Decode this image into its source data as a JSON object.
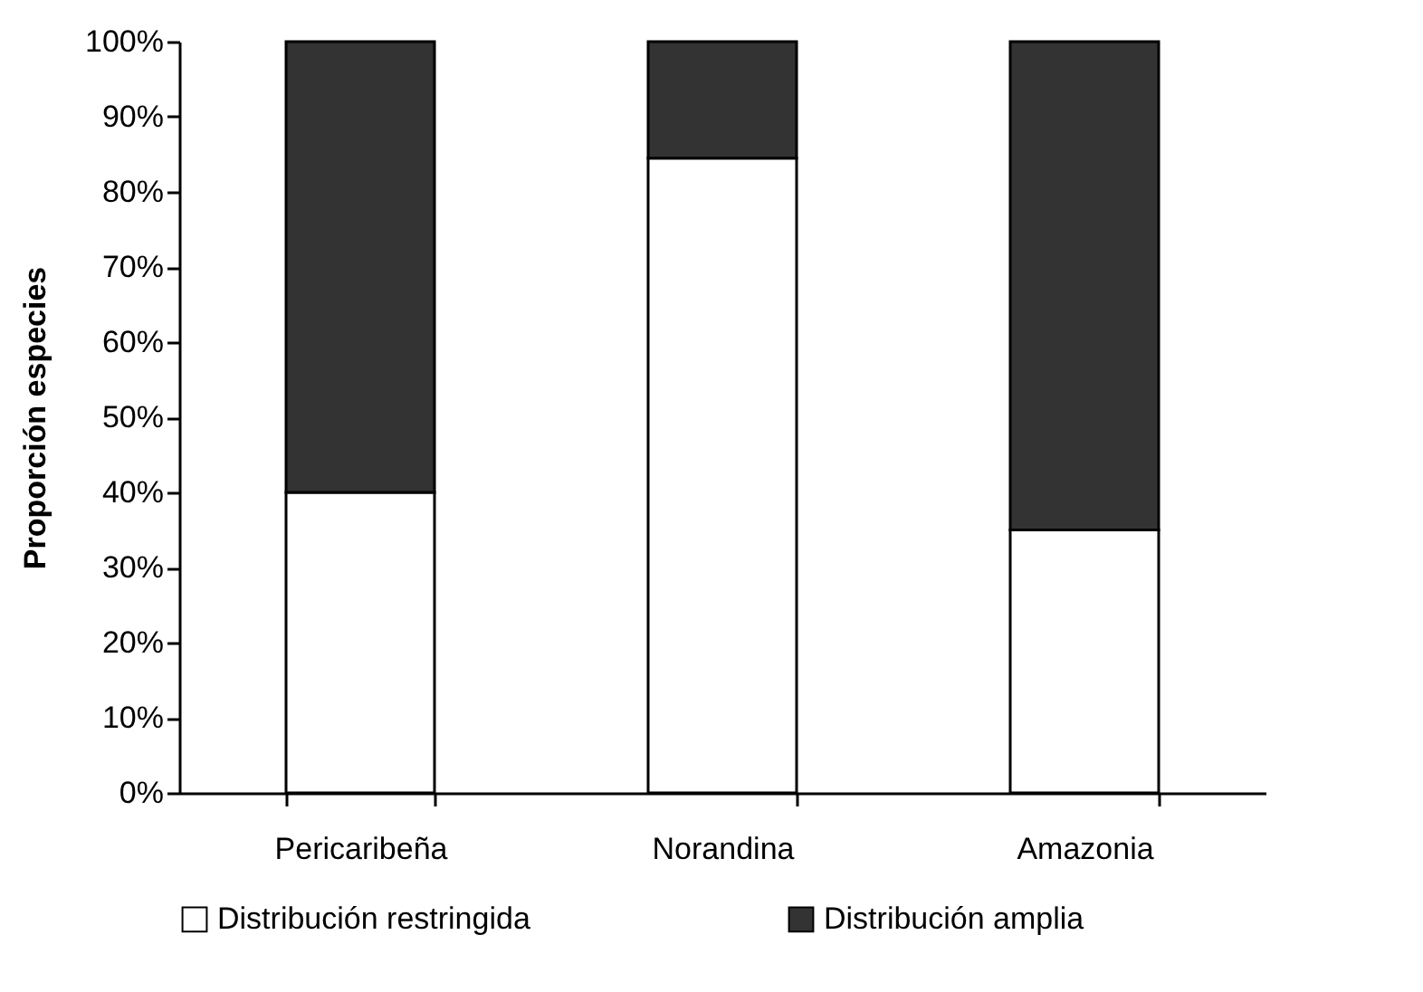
{
  "chart_data": {
    "type": "bar",
    "stacked": true,
    "ylabel": "Proporción especies",
    "categories": [
      "Pericaribeña",
      "Norandina",
      "Amazonia"
    ],
    "series": [
      {
        "name": "Distribución restringida",
        "color": "#ffffff",
        "values": [
          40,
          84.5,
          35
        ]
      },
      {
        "name": "Distribución amplia",
        "color": "#333333",
        "values": [
          60,
          15.5,
          65
        ]
      }
    ],
    "ylim": [
      0,
      100
    ],
    "yticks": [
      {
        "value": 0,
        "label": "0%"
      },
      {
        "value": 10,
        "label": "10%"
      },
      {
        "value": 20,
        "label": "20%"
      },
      {
        "value": 30,
        "label": "30%"
      },
      {
        "value": 40,
        "label": "40%"
      },
      {
        "value": 50,
        "label": "50%"
      },
      {
        "value": 60,
        "label": "60%"
      },
      {
        "value": 70,
        "label": "70%"
      },
      {
        "value": 80,
        "label": "80%"
      },
      {
        "value": 90,
        "label": "90%"
      },
      {
        "value": 100,
        "label": "100%"
      }
    ],
    "legend": "bottom",
    "grid": false
  }
}
